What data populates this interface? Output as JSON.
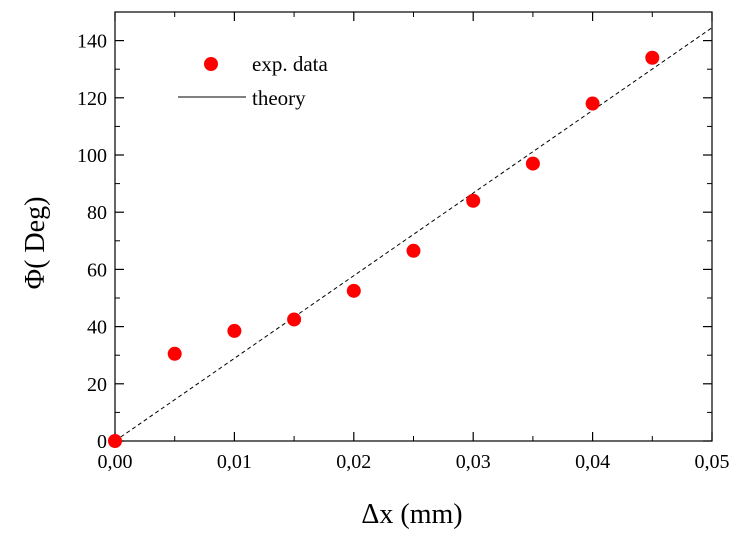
{
  "chart_data": {
    "type": "scatter",
    "title": "",
    "xlabel": "Δx (mm)",
    "ylabel": "Φ( Deg)",
    "xlim": [
      0,
      0.05
    ],
    "ylim": [
      0,
      150
    ],
    "grid": false,
    "legend_position": "top-left",
    "x_ticks": [
      0,
      0.01,
      0.02,
      0.03,
      0.04,
      0.05
    ],
    "x_tick_labels": [
      "0,00",
      "0,01",
      "0,02",
      "0,03",
      "0,04",
      "0,05"
    ],
    "y_ticks": [
      0,
      20,
      40,
      60,
      80,
      100,
      120,
      140
    ],
    "y_tick_labels": [
      "0",
      "20",
      "40",
      "60",
      "80",
      "100",
      "120",
      "140"
    ],
    "series": [
      {
        "name": "exp. data",
        "kind": "scatter",
        "color": "#ff0000",
        "marker": "circle",
        "x": [
          0.0,
          0.005,
          0.01,
          0.015,
          0.02,
          0.025,
          0.03,
          0.035,
          0.04,
          0.045
        ],
        "y": [
          0.0,
          30.5,
          38.5,
          42.5,
          52.5,
          66.5,
          84.0,
          97.0,
          118.0,
          134.0
        ]
      },
      {
        "name": "theory",
        "kind": "line",
        "color": "#000000",
        "line_style": "dashed",
        "x": [
          0.0,
          0.05
        ],
        "y": [
          0.0,
          144.5
        ]
      }
    ]
  }
}
